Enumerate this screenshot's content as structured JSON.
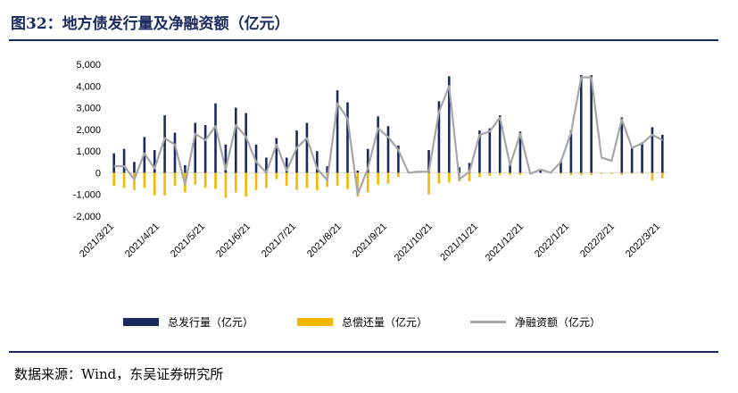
{
  "title": "图32：地方债发行量及净融资额（亿元）",
  "source": "数据来源：Wind，东吴证券研究所",
  "colors": {
    "issuance": "#1a2a5e",
    "repayment": "#f5b800",
    "net": "#a6a6a6",
    "title": "#1a2a5e"
  },
  "chart_data": {
    "type": "bar",
    "title": "图32：地方债发行量及净融资额（亿元）",
    "ylim": [
      -2000,
      5000
    ],
    "yticks": [
      "-2,000",
      "-1,000",
      "0",
      "1,000",
      "2,000",
      "3,000",
      "4,000",
      "5,000"
    ],
    "xticks": [
      "2021/3/21",
      "2021/4/21",
      "2021/5/21",
      "2021/6/21",
      "2021/7/21",
      "2021/8/21",
      "2021/9/21",
      "2021/10/21",
      "2021/11/21",
      "2021/12/21",
      "2022/1/21",
      "2022/2/21",
      "2022/3/21"
    ],
    "grid": false,
    "legend_position": "bottom",
    "series": [
      {
        "name": "总发行量（亿元）",
        "type": "bar",
        "values": [
          900,
          1100,
          500,
          1650,
          1050,
          2650,
          1850,
          350,
          2300,
          2200,
          3200,
          1300,
          3000,
          2750,
          1300,
          700,
          1600,
          700,
          1950,
          2300,
          1000,
          300,
          3800,
          3250,
          100,
          1100,
          2600,
          2150,
          1250,
          0,
          0,
          1050,
          3300,
          4450,
          250,
          450,
          1950,
          2050,
          2650,
          450,
          1900,
          0,
          150,
          0,
          550,
          1950,
          4500,
          4500,
          0,
          0,
          2550,
          1200,
          1400,
          2100,
          1750
        ]
      },
      {
        "name": "总偿还量（亿元）",
        "type": "bar",
        "values": [
          -600,
          -700,
          -800,
          -700,
          -1050,
          -1050,
          -600,
          -900,
          -550,
          -700,
          -750,
          -1150,
          -900,
          -1100,
          -800,
          -700,
          -300,
          -600,
          -800,
          -700,
          -800,
          -650,
          -600,
          -750,
          -1100,
          -900,
          -550,
          -500,
          -200,
          0,
          0,
          -1000,
          -500,
          -450,
          -400,
          -400,
          -200,
          -150,
          -100,
          -100,
          -100,
          -50,
          0,
          0,
          -50,
          -100,
          -100,
          -100,
          -50,
          -50,
          -100,
          -50,
          -50,
          -350,
          -250
        ]
      },
      {
        "name": "净融资额（亿元）",
        "type": "line",
        "values": [
          300,
          300,
          -300,
          900,
          200,
          1600,
          1300,
          -550,
          1800,
          1500,
          2150,
          150,
          2200,
          1650,
          500,
          0,
          1300,
          100,
          1150,
          1600,
          200,
          -350,
          3200,
          2500,
          -1000,
          200,
          2050,
          1650,
          1050,
          0,
          50,
          50,
          2800,
          4000,
          -300,
          50,
          1750,
          1900,
          2550,
          350,
          1800,
          -50,
          150,
          0,
          500,
          1850,
          4400,
          4400,
          700,
          550,
          2450,
          1150,
          1350,
          1750,
          1500
        ]
      }
    ]
  },
  "legend": [
    {
      "label": "总发行量（亿元）",
      "kind": "bar",
      "color": "#1a2a5e"
    },
    {
      "label": "总偿还量（亿元）",
      "kind": "bar",
      "color": "#f5b800"
    },
    {
      "label": "净融资额（亿元）",
      "kind": "line",
      "color": "#a6a6a6"
    }
  ]
}
